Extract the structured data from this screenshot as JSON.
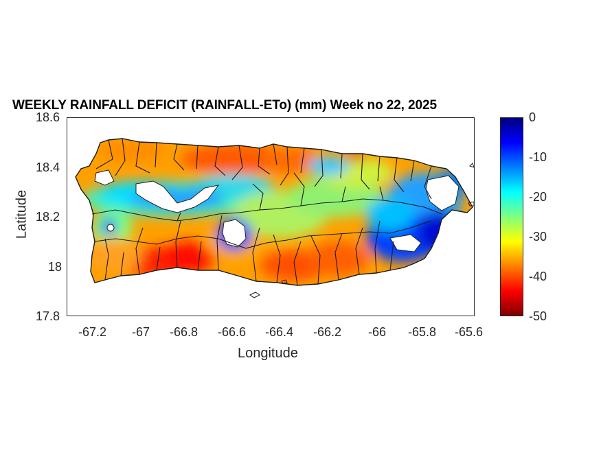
{
  "title": "WEEKLY RAINFALL DEFICIT (RAINFALL-ETo) (mm) Week no 22, 2025",
  "x_axis": {
    "label": "Longitude",
    "ticks": [
      "-67.2",
      "-67",
      "-66.8",
      "-66.6",
      "-66.4",
      "-66.2",
      "-66",
      "-65.8",
      "-65.6"
    ],
    "range": [
      -67.3,
      -65.58
    ]
  },
  "y_axis": {
    "label": "Latitude",
    "ticks": [
      "18.6",
      "18.4",
      "18.2",
      "18",
      "17.8"
    ],
    "range": [
      17.8,
      18.6
    ]
  },
  "colorbar": {
    "ticks": [
      "0",
      "-10",
      "-20",
      "-30",
      "-40",
      "-50"
    ],
    "range": [
      -50,
      0
    ],
    "colormap": "jet",
    "colors": [
      "#800000",
      "#ff0000",
      "#ff8000",
      "#ffff00",
      "#80ff80",
      "#00ffff",
      "#0080ff",
      "#0000ff",
      "#000080"
    ]
  },
  "map": {
    "region": "Puerto Rico",
    "boundaries": "municipalities",
    "no_data_color": "#ffffff"
  }
}
